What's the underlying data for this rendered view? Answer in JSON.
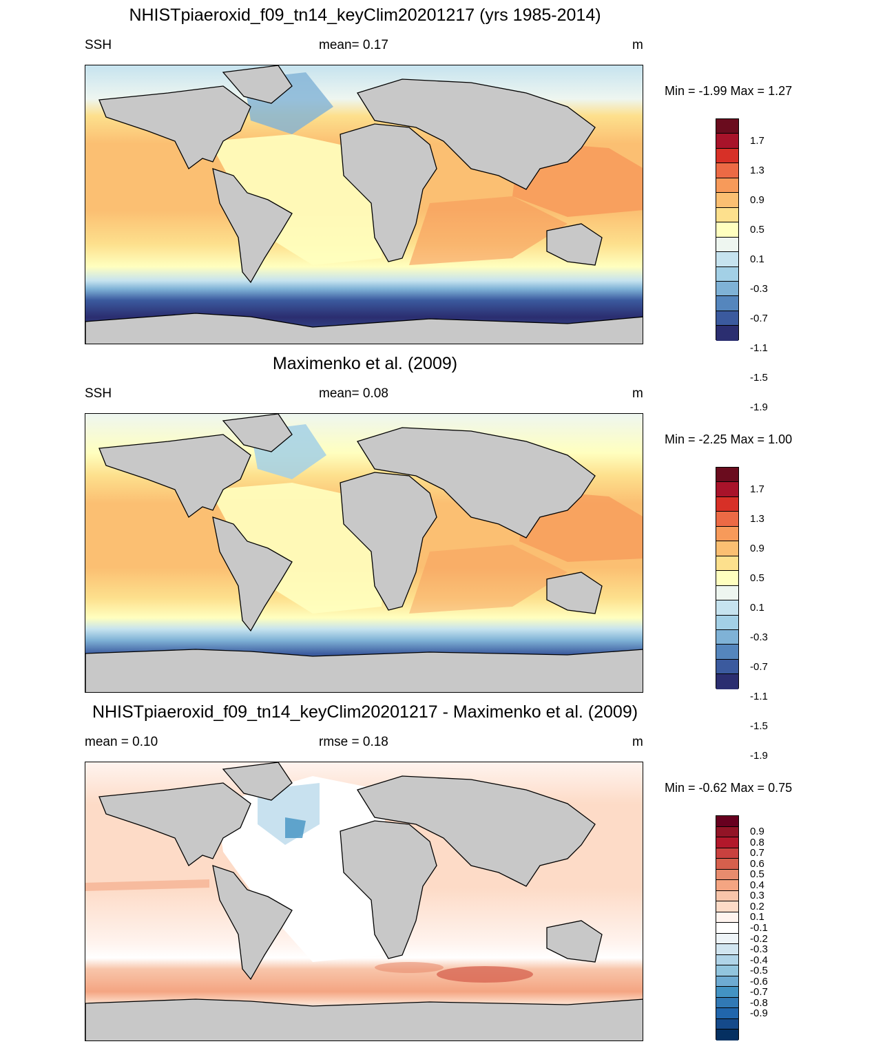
{
  "panels": [
    {
      "title": "NHISTpiaeroxid_f09_tn14_keyClim20201217 (yrs 1985-2014)",
      "left_label": "SSH",
      "center_label": "mean=   0.17",
      "right_label": "m",
      "minmax": "Min =  -1.99 Max =   1.27",
      "colorbar": {
        "colors": [
          "#6a0c1e",
          "#a8132a",
          "#d73027",
          "#ec6a45",
          "#f79a5a",
          "#fbbf72",
          "#fde08d",
          "#ffffbf",
          "#eef6f0",
          "#c6e3ef",
          "#a3d0e6",
          "#7fb2d6",
          "#5586bd",
          "#3b5a9e",
          "#2b2e70"
        ],
        "labels": [
          "1.7",
          "1.3",
          "0.9",
          "0.5",
          "0.1",
          "-0.3",
          "-0.7",
          "-1.1",
          "-1.5",
          "-1.9"
        ]
      }
    },
    {
      "title": "Maximenko et al. (2009)",
      "left_label": "SSH",
      "center_label": "mean=   0.08",
      "right_label": "m",
      "minmax": "Min =  -2.25 Max =   1.00",
      "colorbar": {
        "colors": [
          "#6a0c1e",
          "#a8132a",
          "#d73027",
          "#ec6a45",
          "#f79a5a",
          "#fbbf72",
          "#fde08d",
          "#ffffbf",
          "#eef6f0",
          "#c6e3ef",
          "#a3d0e6",
          "#7fb2d6",
          "#5586bd",
          "#3b5a9e",
          "#2b2e70"
        ],
        "labels": [
          "1.7",
          "1.3",
          "0.9",
          "0.5",
          "0.1",
          "-0.3",
          "-0.7",
          "-1.1",
          "-1.5",
          "-1.9"
        ]
      }
    },
    {
      "title": "NHISTpiaeroxid_f09_tn14_keyClim20201217 - Maximenko et al. (2009)",
      "left_label": "mean =   0.10",
      "center_label": "rmse =   0.18",
      "right_label": "m",
      "minmax": "Min =  -0.62 Max =   0.75",
      "colorbar": {
        "colors": [
          "#67001f",
          "#921426",
          "#b2182b",
          "#c9413f",
          "#d6604d",
          "#e88c6e",
          "#f4a582",
          "#f8c5aa",
          "#fddbc7",
          "#fff4ef",
          "#ffffff",
          "#eef4f8",
          "#d1e5f0",
          "#b0d4e8",
          "#92c5de",
          "#6eabd2",
          "#4393c3",
          "#3179b5",
          "#2166ac",
          "#154a8a",
          "#053061"
        ],
        "labels": [
          "0.9",
          "0.8",
          "0.7",
          "0.6",
          "0.5",
          "0.4",
          "0.3",
          "0.2",
          "0.1",
          "-0.1",
          "-0.2",
          "-0.3",
          "-0.4",
          "-0.5",
          "-0.6",
          "-0.7",
          "-0.8",
          "-0.9"
        ]
      }
    }
  ]
}
